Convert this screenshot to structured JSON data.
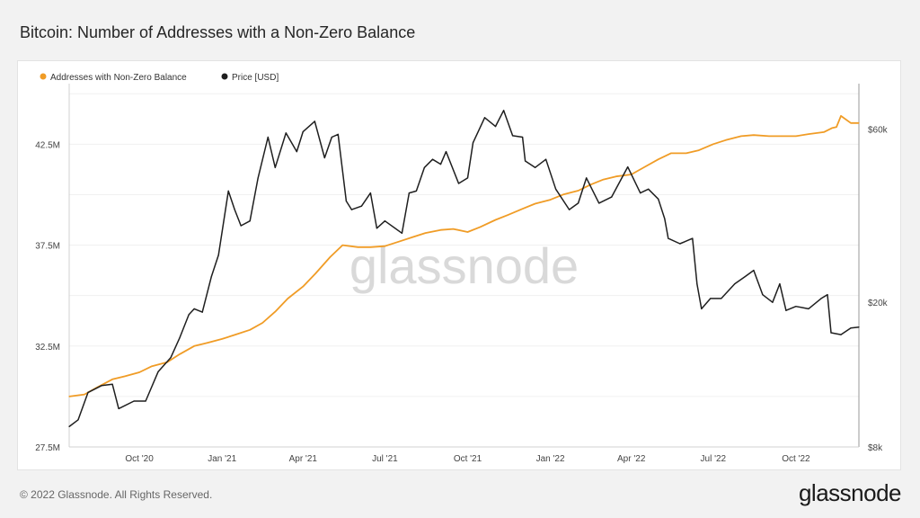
{
  "page": {
    "title": "Bitcoin: Number of Addresses with a Non-Zero Balance",
    "footer": "© 2022 Glassnode. All Rights Reserved.",
    "logo": "glassnode",
    "watermark": "glassnode"
  },
  "chart_data": {
    "type": "line",
    "x_type": "date",
    "x_range": [
      "2020-07-15",
      "2022-12-10"
    ],
    "x_ticks": [
      "Oct '20",
      "Jan '21",
      "Apr '21",
      "Jul '21",
      "Oct '21",
      "Jan '22",
      "Apr '22",
      "Jul '22",
      "Oct '22"
    ],
    "y_left": {
      "ticks": [
        "27.5M",
        "32.5M",
        "37.5M",
        "42.5M"
      ],
      "tick_values": [
        27.5,
        32.5,
        37.5,
        42.5
      ],
      "range": [
        27.5,
        45.5
      ],
      "unit": "M"
    },
    "y_right": {
      "scale": "log",
      "ticks": [
        "$8k",
        "$20k",
        "$60k"
      ],
      "tick_values": [
        8000,
        20000,
        60000
      ],
      "range": [
        8000,
        80000
      ]
    },
    "legend": {
      "placement": "top-left",
      "entries": [
        {
          "name": "Addresses with Non-Zero Balance",
          "color": "#f09c26"
        },
        {
          "name": "Price [USD]",
          "color": "#1f1f1f"
        }
      ]
    },
    "series": [
      {
        "name": "Addresses with Non-Zero Balance",
        "axis": "left",
        "color": "#f09c26",
        "unit": "millions",
        "x": [
          "2020-07-15",
          "2020-08-01",
          "2020-08-15",
          "2020-09-01",
          "2020-09-15",
          "2020-10-01",
          "2020-10-15",
          "2020-11-01",
          "2020-11-15",
          "2020-12-01",
          "2020-12-15",
          "2021-01-01",
          "2021-01-15",
          "2021-02-01",
          "2021-02-15",
          "2021-03-01",
          "2021-03-15",
          "2021-04-01",
          "2021-04-15",
          "2021-05-01",
          "2021-05-15",
          "2021-06-01",
          "2021-06-15",
          "2021-07-01",
          "2021-07-15",
          "2021-08-01",
          "2021-08-15",
          "2021-09-01",
          "2021-09-15",
          "2021-10-01",
          "2021-10-15",
          "2021-11-01",
          "2021-11-15",
          "2021-12-01",
          "2021-12-15",
          "2022-01-01",
          "2022-01-15",
          "2022-02-01",
          "2022-02-15",
          "2022-03-01",
          "2022-03-15",
          "2022-04-01",
          "2022-04-15",
          "2022-05-01",
          "2022-05-15",
          "2022-06-01",
          "2022-06-15",
          "2022-07-01",
          "2022-07-15",
          "2022-08-01",
          "2022-08-15",
          "2022-09-01",
          "2022-09-15",
          "2022-10-01",
          "2022-10-15",
          "2022-11-01",
          "2022-11-10",
          "2022-11-15",
          "2022-11-20",
          "2022-12-01",
          "2022-12-10"
        ],
        "values": [
          30.0,
          30.1,
          30.45,
          30.85,
          31.0,
          31.2,
          31.5,
          31.7,
          32.1,
          32.5,
          32.65,
          32.85,
          33.05,
          33.3,
          33.65,
          34.2,
          34.85,
          35.45,
          36.1,
          36.9,
          37.5,
          37.4,
          37.4,
          37.45,
          37.65,
          37.9,
          38.1,
          38.25,
          38.3,
          38.15,
          38.4,
          38.75,
          39.0,
          39.3,
          39.55,
          39.75,
          40.0,
          40.2,
          40.5,
          40.75,
          40.9,
          41.0,
          41.35,
          41.75,
          42.05,
          42.05,
          42.2,
          42.5,
          42.7,
          42.9,
          42.95,
          42.9,
          42.9,
          42.9,
          43.0,
          43.1,
          43.3,
          43.35,
          43.9,
          43.55,
          43.55
        ]
      },
      {
        "name": "Price [USD]",
        "axis": "right",
        "color": "#1f1f1f",
        "unit": "USD",
        "x": [
          "2020-07-15",
          "2020-07-25",
          "2020-08-05",
          "2020-08-20",
          "2020-09-01",
          "2020-09-08",
          "2020-09-25",
          "2020-10-08",
          "2020-10-22",
          "2020-11-05",
          "2020-11-15",
          "2020-11-25",
          "2020-12-01",
          "2020-12-10",
          "2020-12-20",
          "2020-12-28",
          "2021-01-08",
          "2021-01-15",
          "2021-01-22",
          "2021-02-01",
          "2021-02-10",
          "2021-02-21",
          "2021-03-01",
          "2021-03-13",
          "2021-03-25",
          "2021-04-01",
          "2021-04-14",
          "2021-04-25",
          "2021-05-03",
          "2021-05-10",
          "2021-05-19",
          "2021-05-25",
          "2021-06-05",
          "2021-06-15",
          "2021-06-22",
          "2021-07-01",
          "2021-07-20",
          "2021-07-28",
          "2021-08-05",
          "2021-08-14",
          "2021-08-23",
          "2021-09-01",
          "2021-09-07",
          "2021-09-21",
          "2021-10-01",
          "2021-10-07",
          "2021-10-20",
          "2021-11-01",
          "2021-11-10",
          "2021-11-20",
          "2021-12-01",
          "2021-12-04",
          "2021-12-15",
          "2021-12-27",
          "2022-01-07",
          "2022-01-22",
          "2022-02-01",
          "2022-02-10",
          "2022-02-24",
          "2022-03-10",
          "2022-03-28",
          "2022-04-11",
          "2022-04-20",
          "2022-05-01",
          "2022-05-08",
          "2022-05-12",
          "2022-05-25",
          "2022-06-08",
          "2022-06-13",
          "2022-06-18",
          "2022-06-28",
          "2022-07-10",
          "2022-07-25",
          "2022-08-05",
          "2022-08-15",
          "2022-08-25",
          "2022-09-05",
          "2022-09-13",
          "2022-09-20",
          "2022-10-01",
          "2022-10-15",
          "2022-10-29",
          "2022-11-05",
          "2022-11-09",
          "2022-11-20",
          "2022-12-01",
          "2022-12-10"
        ],
        "values": [
          9100,
          9500,
          11300,
          11800,
          11900,
          10200,
          10700,
          10700,
          12900,
          14100,
          16000,
          18500,
          19200,
          18800,
          23500,
          27000,
          40500,
          36000,
          32500,
          33500,
          44000,
          57000,
          47000,
          58500,
          52000,
          59000,
          63000,
          50000,
          57000,
          58000,
          38000,
          36000,
          36800,
          40000,
          32000,
          33500,
          31000,
          40000,
          40500,
          47000,
          49500,
          48000,
          52000,
          42500,
          44000,
          55000,
          64500,
          61000,
          67500,
          57500,
          57000,
          49000,
          47000,
          49500,
          41000,
          36000,
          37500,
          44000,
          37500,
          39000,
          47200,
          40000,
          41000,
          38500,
          34000,
          30000,
          29000,
          30000,
          22500,
          19200,
          20500,
          20500,
          22500,
          23500,
          24500,
          21000,
          20000,
          22500,
          19000,
          19500,
          19200,
          20500,
          21000,
          16500,
          16300,
          17000,
          17100
        ]
      }
    ]
  }
}
